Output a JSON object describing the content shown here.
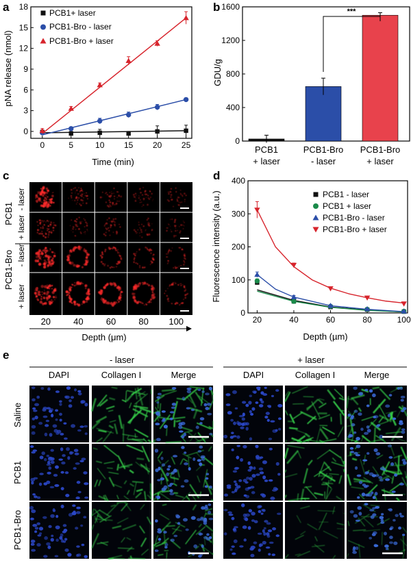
{
  "panel_letters": [
    "a",
    "b",
    "c",
    "d",
    "e"
  ],
  "chart_data": [
    {
      "panel": "a",
      "type": "line",
      "xlabel": "Time (min)",
      "ylabel": "pNA release (nmol)",
      "xlim": [
        -2,
        26
      ],
      "ylim": [
        -1,
        18
      ],
      "xticks": [
        0,
        5,
        10,
        15,
        20,
        25
      ],
      "yticks": [
        0,
        3,
        6,
        9,
        12,
        15,
        18
      ],
      "legend_position": "top-left",
      "series": [
        {
          "name": "PCB1+ laser",
          "color": "#111111",
          "marker": "square",
          "x": [
            0,
            5,
            10,
            15,
            20,
            25
          ],
          "y": [
            -0.1,
            -0.3,
            -0.2,
            -0.3,
            0.0,
            0.1
          ],
          "err": [
            0.2,
            0.3,
            0.5,
            0.3,
            0.8,
            0.8
          ],
          "fit": [
            -0.2,
            0.1
          ]
        },
        {
          "name": "PCB1-Bro - laser",
          "color": "#2b4ea8",
          "marker": "circle",
          "x": [
            0,
            5,
            10,
            15,
            20,
            25
          ],
          "y": [
            -0.2,
            0.4,
            1.5,
            2.4,
            3.5,
            4.6
          ],
          "err": [
            0.2,
            0.2,
            0.4,
            0.4,
            0.4,
            0.2
          ],
          "fit": [
            -0.5,
            4.6
          ]
        },
        {
          "name": "PCB1-Bro + laser",
          "color": "#d7242c",
          "marker": "triangle",
          "x": [
            0,
            5,
            10,
            15,
            20,
            25
          ],
          "y": [
            0.1,
            3.3,
            6.7,
            10.2,
            12.7,
            16.4
          ],
          "err": [
            0.3,
            0.3,
            0.3,
            0.6,
            0.4,
            0.9
          ],
          "fit": [
            -0.3,
            16.4
          ]
        }
      ]
    },
    {
      "panel": "b",
      "type": "bar",
      "ylabel": "GDU/g",
      "ylim": [
        0,
        1600
      ],
      "yticks": [
        0,
        400,
        800,
        1200,
        1600
      ],
      "categories": [
        [
          "PCB1",
          "+ laser"
        ],
        [
          "PCB1-Bro",
          "- laser"
        ],
        [
          "PCB1-Bro",
          "+ laser"
        ]
      ],
      "values": [
        25,
        650,
        1500
      ],
      "errors": [
        45,
        100,
        30
      ],
      "colors": [
        "#111111",
        "#2b4ea8",
        "#e8424c"
      ],
      "significance": "***"
    },
    {
      "panel": "d",
      "type": "scatter",
      "xlabel": "Depth (µm)",
      "ylabel": "Fluorescence intensity (a.u.)",
      "xlim": [
        15,
        102
      ],
      "ylim": [
        0,
        400
      ],
      "xticks": [
        20,
        40,
        60,
        80,
        100
      ],
      "yticks": [
        0,
        100,
        200,
        300,
        400
      ],
      "legend_position": "top-right",
      "series": [
        {
          "name": "PCB1 - laser",
          "color": "#111111",
          "marker": "square",
          "x": [
            20,
            40,
            60,
            80,
            100
          ],
          "y": [
            92,
            35,
            18,
            10,
            4
          ],
          "err": [
            5,
            4,
            3,
            2,
            2
          ],
          "fit": [
            [
              20,
              70
            ],
            [
              40,
              38
            ],
            [
              60,
              18
            ],
            [
              80,
              9
            ],
            [
              100,
              3
            ]
          ]
        },
        {
          "name": "PCB1 + laser",
          "color": "#1a8a4a",
          "marker": "circle",
          "x": [
            20,
            40,
            60,
            80,
            100
          ],
          "y": [
            97,
            35,
            20,
            11,
            5
          ],
          "err": [
            6,
            4,
            3,
            2,
            2
          ],
          "fit": [
            [
              20,
              66
            ],
            [
              40,
              35
            ],
            [
              60,
              17
            ],
            [
              80,
              8
            ],
            [
              100,
              3
            ]
          ]
        },
        {
          "name": "PCB1-Bro - laser",
          "color": "#2b4ea8",
          "marker": "triangle",
          "x": [
            20,
            40,
            60,
            80,
            100
          ],
          "y": [
            116,
            48,
            22,
            12,
            5
          ],
          "err": [
            8,
            5,
            3,
            2,
            2
          ],
          "fit": [
            [
              20,
              116
            ],
            [
              30,
              72
            ],
            [
              40,
              48
            ],
            [
              60,
              22
            ],
            [
              80,
              11
            ],
            [
              100,
              4
            ]
          ]
        },
        {
          "name": "PCB1-Bro + laser",
          "color": "#d7242c",
          "marker": "triangle-down",
          "x": [
            20,
            40,
            60,
            80,
            100
          ],
          "y": [
            312,
            145,
            74,
            46,
            28
          ],
          "err": [
            25,
            6,
            5,
            4,
            5
          ],
          "fit": [
            [
              20,
              312
            ],
            [
              30,
              200
            ],
            [
              40,
              140
            ],
            [
              50,
              100
            ],
            [
              60,
              75
            ],
            [
              70,
              58
            ],
            [
              80,
              46
            ],
            [
              90,
              36
            ],
            [
              100,
              30
            ]
          ]
        }
      ]
    }
  ],
  "panel_c": {
    "row_groups": [
      "PCB1",
      "PCB1-Bro"
    ],
    "row_labels": [
      "- laser",
      "+ laser",
      "- laser",
      "+ laser"
    ],
    "depths": [
      "20",
      "40",
      "60",
      "80",
      "100"
    ],
    "xlabel": "Depth (μm)",
    "intensity": [
      [
        0.95,
        0.45,
        0.3,
        0.25,
        0.2
      ],
      [
        0.7,
        0.35,
        0.25,
        0.2,
        0.15
      ],
      [
        0.95,
        0.8,
        0.6,
        0.45,
        0.3
      ],
      [
        1.0,
        0.95,
        0.85,
        0.75,
        0.55
      ]
    ]
  },
  "panel_e": {
    "groups": [
      "- laser",
      "+ laser"
    ],
    "columns": [
      "DAPI",
      "Collagen I",
      "Merge"
    ],
    "rows": [
      "Saline",
      "PCB1",
      "PCB1-Bro"
    ],
    "collagen_level": [
      [
        0.9,
        0.9
      ],
      [
        0.8,
        0.8
      ],
      [
        0.65,
        0.25
      ]
    ]
  }
}
